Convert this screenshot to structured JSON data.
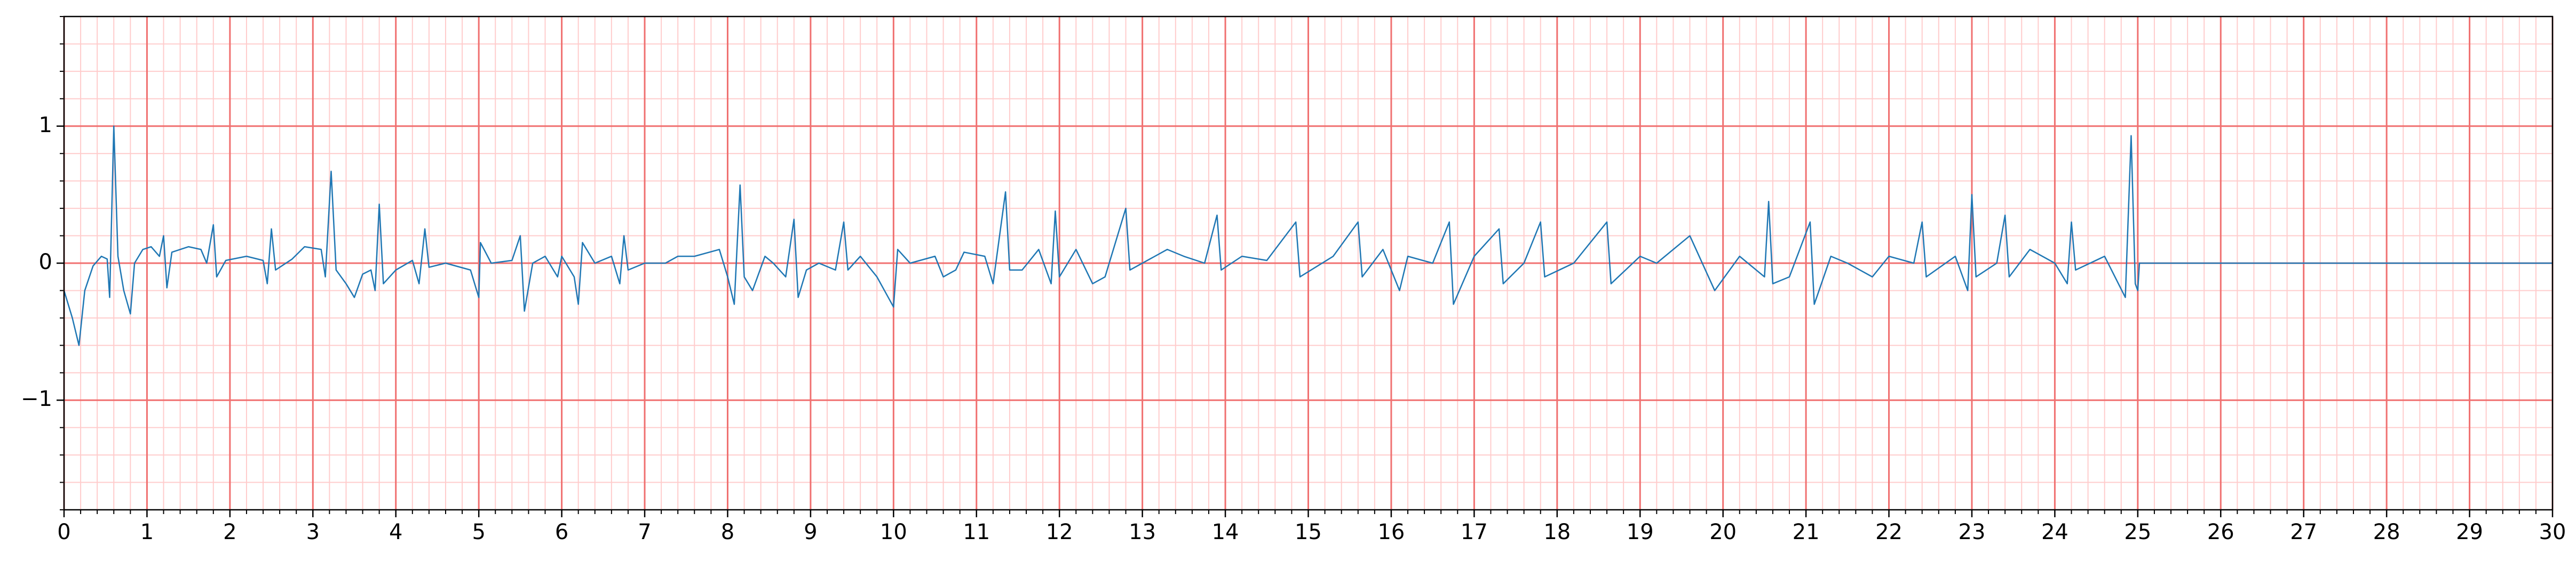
{
  "chart_data": {
    "type": "line",
    "x": [
      0,
      0.1,
      0.18,
      0.25,
      0.35,
      0.45,
      0.52,
      0.55,
      0.6,
      0.65,
      0.72,
      0.8,
      0.85,
      0.95,
      1.05,
      1.15,
      1.2,
      1.24,
      1.3,
      1.5,
      1.65,
      1.72,
      1.8,
      1.84,
      1.95,
      2.2,
      2.4,
      2.45,
      2.5,
      2.55,
      2.75,
      2.9,
      3.1,
      3.15,
      3.22,
      3.28,
      3.4,
      3.5,
      3.6,
      3.7,
      3.75,
      3.8,
      3.85,
      4.0,
      4.2,
      4.28,
      4.35,
      4.4,
      4.6,
      4.9,
      5.0,
      5.02,
      5.15,
      5.4,
      5.5,
      5.55,
      5.65,
      5.8,
      5.95,
      6.0,
      6.15,
      6.2,
      6.25,
      6.4,
      6.6,
      6.7,
      6.75,
      6.8,
      7.0,
      7.25,
      7.4,
      7.6,
      7.9,
      8.0,
      8.08,
      8.15,
      8.2,
      8.3,
      8.45,
      8.55,
      8.7,
      8.8,
      8.85,
      8.95,
      9.1,
      9.3,
      9.4,
      9.45,
      9.6,
      9.8,
      10.0,
      10.05,
      10.2,
      10.5,
      10.6,
      10.75,
      10.85,
      11.1,
      11.2,
      11.35,
      11.4,
      11.55,
      11.75,
      11.9,
      11.95,
      12.0,
      12.2,
      12.4,
      12.55,
      12.8,
      12.85,
      13.0,
      13.3,
      13.5,
      13.75,
      13.9,
      13.95,
      14.2,
      14.5,
      14.85,
      14.9,
      15.3,
      15.6,
      15.65,
      15.9,
      16.1,
      16.2,
      16.5,
      16.7,
      16.75,
      17.0,
      17.3,
      17.35,
      17.6,
      17.8,
      17.85,
      18.2,
      18.6,
      18.65,
      19.0,
      19.2,
      19.6,
      19.9,
      20.2,
      20.5,
      20.55,
      20.6,
      20.8,
      21.05,
      21.1,
      21.3,
      21.5,
      21.8,
      22.0,
      22.3,
      22.4,
      22.45,
      22.8,
      22.95,
      23.0,
      23.05,
      23.3,
      23.4,
      23.45,
      23.7,
      24.0,
      24.15,
      24.2,
      24.25,
      24.6,
      24.85,
      24.92,
      24.97,
      25.0,
      25.02,
      30
    ],
    "series": [
      {
        "color": "#1f77b4",
        "values": [
          -0.2,
          -0.4,
          -0.6,
          -0.2,
          -0.02,
          0.05,
          0.03,
          -0.25,
          1.0,
          0.05,
          -0.2,
          -0.37,
          0.0,
          0.1,
          0.12,
          0.05,
          0.2,
          -0.18,
          0.08,
          0.12,
          0.1,
          0.0,
          0.28,
          -0.1,
          0.02,
          0.05,
          0.02,
          -0.15,
          0.25,
          -0.05,
          0.03,
          0.12,
          0.1,
          -0.1,
          0.67,
          -0.05,
          -0.15,
          -0.25,
          -0.08,
          -0.05,
          -0.2,
          0.43,
          -0.15,
          -0.05,
          0.02,
          -0.15,
          0.25,
          -0.03,
          0.0,
          -0.05,
          -0.25,
          0.15,
          0.0,
          0.02,
          0.2,
          -0.35,
          0.0,
          0.05,
          -0.1,
          0.05,
          -0.1,
          -0.3,
          0.15,
          0.0,
          0.05,
          -0.15,
          0.2,
          -0.05,
          0.0,
          0.0,
          0.05,
          0.05,
          0.1,
          -0.1,
          -0.3,
          0.57,
          -0.1,
          -0.2,
          0.05,
          0.0,
          -0.1,
          0.32,
          -0.25,
          -0.05,
          0.0,
          -0.05,
          0.3,
          -0.05,
          0.05,
          -0.1,
          -0.32,
          0.1,
          0.0,
          0.05,
          -0.1,
          -0.05,
          0.08,
          0.05,
          -0.15,
          0.52,
          -0.05,
          -0.05,
          0.1,
          -0.15,
          0.38,
          -0.1,
          0.1,
          -0.15,
          -0.1,
          0.4,
          -0.05,
          0.0,
          0.1,
          0.05,
          0.0,
          0.35,
          -0.05,
          0.05,
          0.02,
          0.3,
          -0.1,
          0.05,
          0.3,
          -0.1,
          0.1,
          -0.2,
          0.05,
          0.0,
          0.3,
          -0.3,
          0.05,
          0.25,
          -0.15,
          0.0,
          0.3,
          -0.1,
          0.0,
          0.3,
          -0.15,
          0.05,
          0.0,
          0.2,
          -0.2,
          0.05,
          -0.1,
          0.45,
          -0.15,
          -0.1,
          0.3,
          -0.3,
          0.05,
          0.0,
          -0.1,
          0.05,
          0.0,
          0.3,
          -0.1,
          0.05,
          -0.2,
          0.5,
          -0.1,
          0.0,
          0.35,
          -0.1,
          0.1,
          0.0,
          -0.15,
          0.3,
          -0.05,
          0.05,
          -0.25,
          0.93,
          -0.15,
          -0.2,
          0,
          0
        ]
      }
    ],
    "xlim": [
      0,
      30
    ],
    "ylim": [
      -1.8,
      1.8
    ],
    "xticks": [
      0,
      1,
      2,
      3,
      4,
      5,
      6,
      7,
      8,
      9,
      10,
      11,
      12,
      13,
      14,
      15,
      16,
      17,
      18,
      19,
      20,
      21,
      22,
      23,
      24,
      25,
      26,
      27,
      28,
      29,
      30
    ],
    "yticks": [
      {
        "value": -1,
        "label": "−1"
      },
      0,
      1
    ],
    "minor_step": 0.2,
    "grid": true,
    "major_grid_color": "#f07070",
    "minor_grid_color": "#ffcccc"
  }
}
